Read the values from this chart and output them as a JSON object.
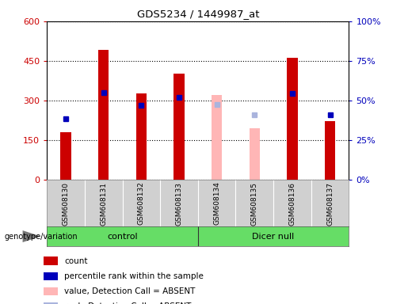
{
  "title": "GDS5234 / 1449987_at",
  "samples": [
    "GSM608130",
    "GSM608131",
    "GSM608132",
    "GSM608133",
    "GSM608134",
    "GSM608135",
    "GSM608136",
    "GSM608137"
  ],
  "count_values": [
    180,
    490,
    325,
    400,
    null,
    null,
    460,
    220
  ],
  "absent_values": [
    null,
    null,
    null,
    null,
    320,
    195,
    null,
    null
  ],
  "percentile_values": [
    230,
    330,
    280,
    310,
    null,
    null,
    325,
    245
  ],
  "absent_rank_values": [
    null,
    null,
    null,
    null,
    285,
    245,
    null,
    null
  ],
  "ylim_left": [
    0,
    600
  ],
  "yticks_left": [
    0,
    150,
    300,
    450,
    600
  ],
  "ytick_labels_left": [
    "0",
    "150",
    "300",
    "450",
    "600"
  ],
  "yticks_right": [
    0,
    25,
    50,
    75,
    100
  ],
  "ytick_labels_right": [
    "0%",
    "25%",
    "50%",
    "75%",
    "100%"
  ],
  "color_count": "#cc0000",
  "color_absent_value": "#ffb6b6",
  "color_percentile": "#0000bb",
  "color_absent_rank": "#aab4dd",
  "legend_items": [
    {
      "label": "count",
      "color": "#cc0000"
    },
    {
      "label": "percentile rank within the sample",
      "color": "#0000bb"
    },
    {
      "label": "value, Detection Call = ABSENT",
      "color": "#ffb6b6"
    },
    {
      "label": "rank, Detection Call = ABSENT",
      "color": "#aab4dd"
    }
  ]
}
